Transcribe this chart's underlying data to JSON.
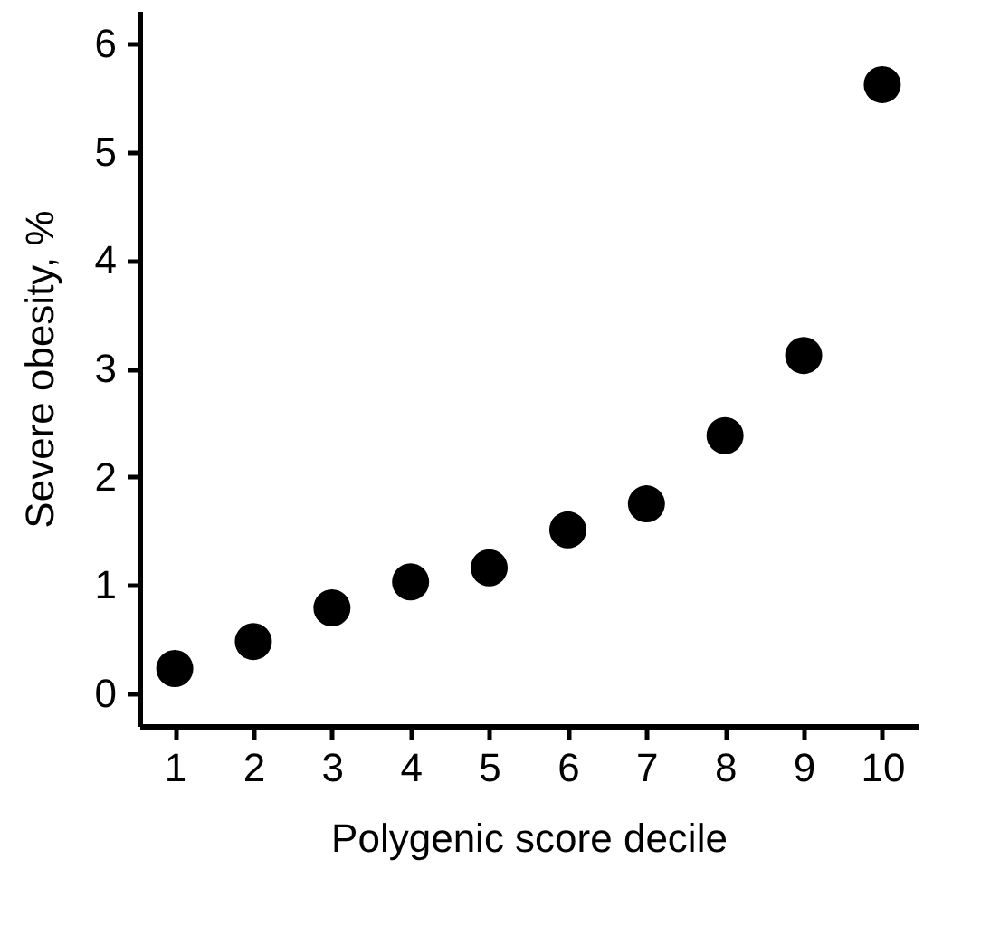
{
  "chart_data": {
    "type": "scatter",
    "xlabel": "Polygenic score decile",
    "ylabel": "Severe obesity, %",
    "x": [
      1,
      2,
      3,
      4,
      5,
      6,
      7,
      8,
      9,
      10
    ],
    "series": [
      {
        "color": "#000000",
        "values": [
          0.23,
          0.48,
          0.79,
          1.03,
          1.16,
          1.51,
          1.75,
          2.38,
          3.12,
          5.62
        ]
      }
    ],
    "xlim": [
      0.55,
      10.45
    ],
    "xticks": [
      1,
      2,
      3,
      4,
      5,
      6,
      7,
      8,
      9,
      10
    ],
    "ylim": [
      -0.3,
      6.3
    ],
    "yticks": [
      0,
      1,
      2,
      3,
      4,
      5,
      6
    ],
    "grid": false,
    "legend": false,
    "marker": "circle"
  }
}
